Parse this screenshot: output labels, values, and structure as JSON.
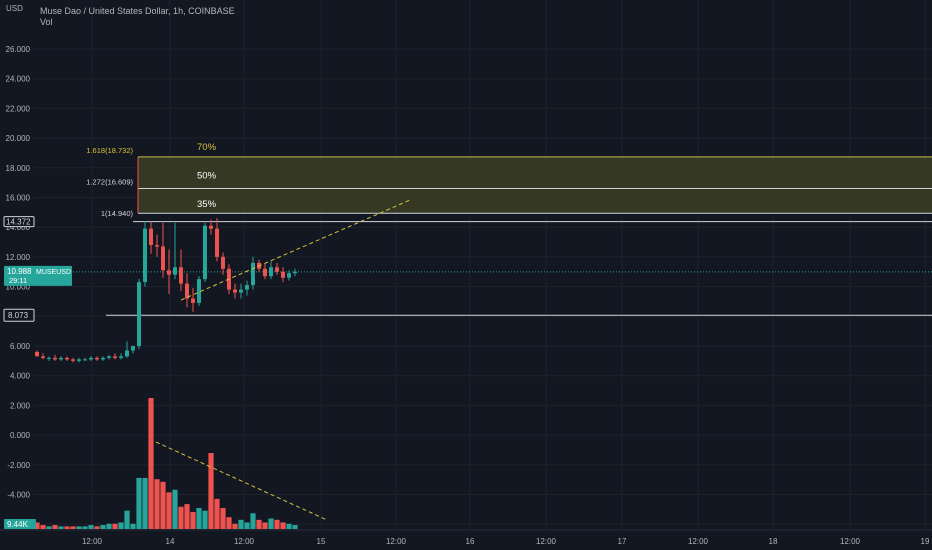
{
  "header": {
    "currency": "USD",
    "title": "Muse Dao / United States Dollar, 1h, COINBASE",
    "indicator": "Vol"
  },
  "price_axis": {
    "labels": [
      "26.000",
      "24.000",
      "22.000",
      "20.000",
      "18.000",
      "16.000",
      "14.000",
      "12.000",
      "10.000",
      "8.000",
      "6.000",
      "4.000",
      "2.000",
      "0.000",
      "-2.000",
      "-4.000",
      "-6.000",
      "-8.000"
    ],
    "values": [
      26,
      24,
      22,
      20,
      18,
      16,
      14,
      12,
      10,
      8,
      6,
      4,
      2,
      0,
      -2,
      -4,
      -6,
      -8
    ]
  },
  "time_axis": {
    "labels": [
      "12:00",
      "14",
      "12:00",
      "15",
      "12:00",
      "16",
      "12:00",
      "17",
      "12:00",
      "18",
      "12:00",
      "19"
    ]
  },
  "badges": {
    "high": "14.372",
    "last_price": "10.988",
    "symbol": "MUSEUSD",
    "countdown": "29:11",
    "support": "8.073",
    "volume": "9.44K"
  },
  "fib": {
    "level_1": "1(14.940)",
    "level_1272": "1.272(16.609)",
    "level_1618": "1.618(18.732)",
    "zone_labels": [
      "35%",
      "50%",
      "70%"
    ],
    "color_1618": "#d9c13a",
    "zone_fill": "#3c3f24"
  },
  "colors": {
    "up": "#26a69a",
    "down": "#ef5350",
    "bg": "#131722",
    "grid": "#1e222d",
    "text": "#b2b5be",
    "trend": "#d9c13a"
  },
  "chart_data": {
    "type": "candlestick",
    "symbol": "MUSEUSD",
    "interval": "1h",
    "y_price_unit": "USD",
    "ohlc": [
      {
        "o": 5.6,
        "h": 5.7,
        "l": 5.3,
        "c": 5.3
      },
      {
        "o": 5.3,
        "h": 5.5,
        "l": 5.1,
        "c": 5.2
      },
      {
        "o": 5.2,
        "h": 5.3,
        "l": 5.0,
        "c": 5.2
      },
      {
        "o": 5.2,
        "h": 5.4,
        "l": 5.0,
        "c": 5.1
      },
      {
        "o": 5.1,
        "h": 5.3,
        "l": 5.0,
        "c": 5.2
      },
      {
        "o": 5.2,
        "h": 5.3,
        "l": 5.0,
        "c": 5.1
      },
      {
        "o": 5.1,
        "h": 5.2,
        "l": 4.9,
        "c": 5.0
      },
      {
        "o": 5.0,
        "h": 5.2,
        "l": 4.9,
        "c": 5.1
      },
      {
        "o": 5.1,
        "h": 5.2,
        "l": 5.0,
        "c": 5.1
      },
      {
        "o": 5.1,
        "h": 5.3,
        "l": 5.0,
        "c": 5.2
      },
      {
        "o": 5.2,
        "h": 5.3,
        "l": 5.0,
        "c": 5.1
      },
      {
        "o": 5.1,
        "h": 5.3,
        "l": 5.0,
        "c": 5.2
      },
      {
        "o": 5.2,
        "h": 5.4,
        "l": 5.1,
        "c": 5.3
      },
      {
        "o": 5.3,
        "h": 5.5,
        "l": 5.1,
        "c": 5.2
      },
      {
        "o": 5.2,
        "h": 5.5,
        "l": 5.1,
        "c": 5.3
      },
      {
        "o": 5.3,
        "h": 6.3,
        "l": 5.2,
        "c": 5.7
      },
      {
        "o": 5.7,
        "h": 6.0,
        "l": 5.5,
        "c": 6.0
      },
      {
        "o": 6.0,
        "h": 10.5,
        "l": 5.8,
        "c": 10.3
      },
      {
        "o": 10.3,
        "h": 14.4,
        "l": 10.0,
        "c": 13.9
      },
      {
        "o": 13.9,
        "h": 14.37,
        "l": 12.2,
        "c": 12.8
      },
      {
        "o": 12.8,
        "h": 13.5,
        "l": 12.0,
        "c": 12.7
      },
      {
        "o": 12.7,
        "h": 14.3,
        "l": 10.6,
        "c": 11.1
      },
      {
        "o": 11.1,
        "h": 12.5,
        "l": 9.5,
        "c": 10.8
      },
      {
        "o": 10.8,
        "h": 14.3,
        "l": 10.5,
        "c": 11.3
      },
      {
        "o": 11.3,
        "h": 12.5,
        "l": 9.7,
        "c": 10.2
      },
      {
        "o": 10.2,
        "h": 10.9,
        "l": 8.6,
        "c": 9.2
      },
      {
        "o": 9.2,
        "h": 9.9,
        "l": 8.3,
        "c": 8.9
      },
      {
        "o": 8.9,
        "h": 10.7,
        "l": 8.7,
        "c": 10.5
      },
      {
        "o": 10.5,
        "h": 14.3,
        "l": 10.3,
        "c": 14.1
      },
      {
        "o": 14.1,
        "h": 14.5,
        "l": 13.5,
        "c": 13.9
      },
      {
        "o": 13.9,
        "h": 14.6,
        "l": 11.7,
        "c": 12.0
      },
      {
        "o": 12.0,
        "h": 12.3,
        "l": 10.8,
        "c": 11.2
      },
      {
        "o": 11.2,
        "h": 11.5,
        "l": 9.5,
        "c": 9.8
      },
      {
        "o": 9.8,
        "h": 10.2,
        "l": 9.2,
        "c": 9.6
      },
      {
        "o": 9.6,
        "h": 10.2,
        "l": 9.2,
        "c": 9.8
      },
      {
        "o": 9.8,
        "h": 10.4,
        "l": 9.4,
        "c": 10.1
      },
      {
        "o": 10.1,
        "h": 12.0,
        "l": 9.8,
        "c": 11.6
      },
      {
        "o": 11.6,
        "h": 11.8,
        "l": 11.0,
        "c": 11.2
      },
      {
        "o": 11.2,
        "h": 11.6,
        "l": 10.5,
        "c": 10.7
      },
      {
        "o": 10.7,
        "h": 11.7,
        "l": 10.5,
        "c": 11.3
      },
      {
        "o": 11.3,
        "h": 11.6,
        "l": 10.8,
        "c": 11.0
      },
      {
        "o": 11.0,
        "h": 11.3,
        "l": 10.3,
        "c": 10.6
      },
      {
        "o": 10.6,
        "h": 11.1,
        "l": 10.4,
        "c": 10.9
      },
      {
        "o": 10.9,
        "h": 11.2,
        "l": 10.7,
        "c": 11.0
      }
    ],
    "volume_relative": [
      0.05,
      0.03,
      0.02,
      0.03,
      0.02,
      0.02,
      0.02,
      0.02,
      0.02,
      0.03,
      0.02,
      0.03,
      0.04,
      0.04,
      0.05,
      0.14,
      0.04,
      0.39,
      0.39,
      1.0,
      0.38,
      0.36,
      0.28,
      0.3,
      0.17,
      0.19,
      0.13,
      0.16,
      0.14,
      0.58,
      0.23,
      0.16,
      0.09,
      0.04,
      0.07,
      0.05,
      0.12,
      0.07,
      0.05,
      0.08,
      0.07,
      0.05,
      0.04,
      0.03
    ],
    "horizontal_levels": [
      14.372,
      8.073
    ],
    "fibonacci_levels": [
      14.94,
      16.609,
      18.732
    ],
    "ylim": [
      -8.8,
      27.2
    ]
  }
}
